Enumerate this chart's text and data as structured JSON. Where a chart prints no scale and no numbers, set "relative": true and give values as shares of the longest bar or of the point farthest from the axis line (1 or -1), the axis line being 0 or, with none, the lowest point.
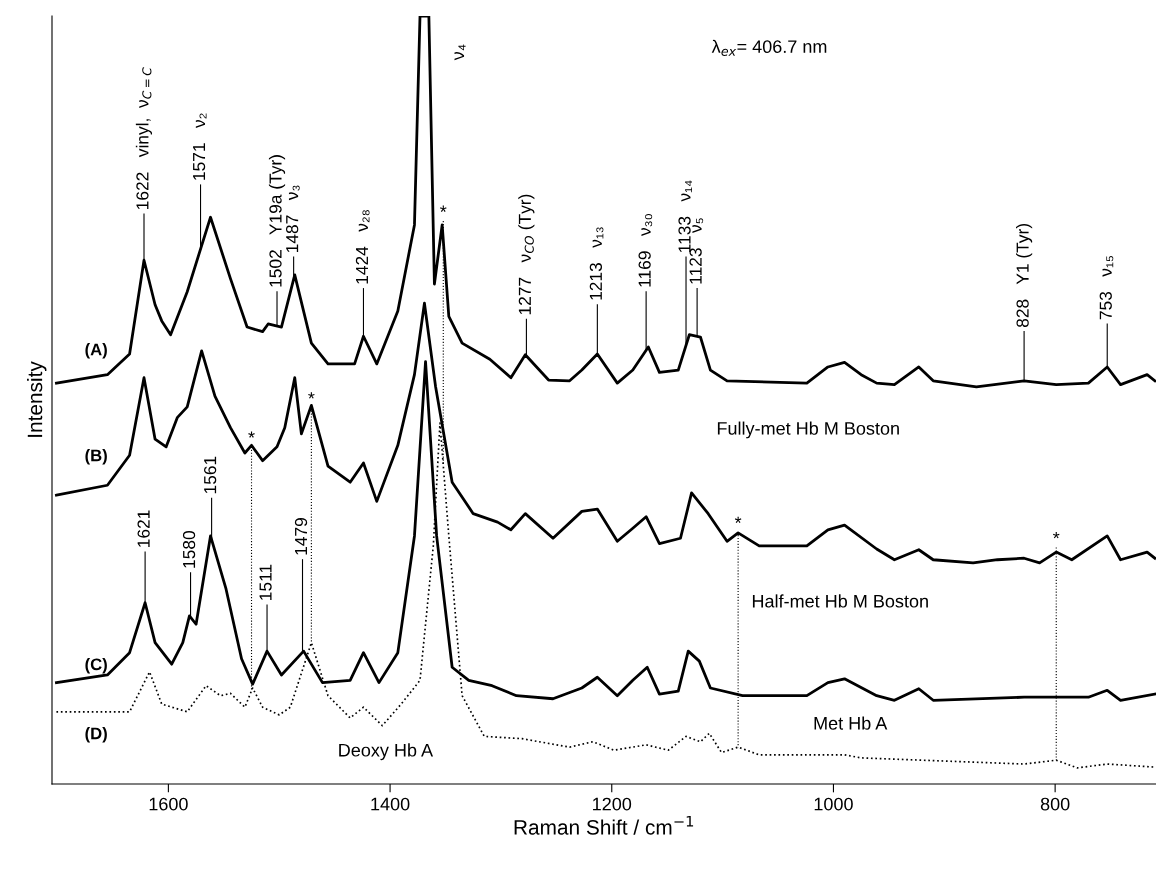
{
  "chart_data": {
    "type": "line",
    "relative": true,
    "xlabel": "Raman Shift / cm$^{−1}$",
    "ylabel": "Intensity",
    "xlim": [
      1705,
      709
    ],
    "xticks": [
      1600,
      1400,
      1200,
      1000,
      800
    ],
    "tick_labels": "x",
    "series": [
      {
        "name": "(A)",
        "color": "#000000",
        "line_style": "solid",
        "x": [
          1701,
          1655,
          1635,
          1622,
          1612,
          1606,
          1598,
          1583,
          1562,
          1544,
          1529,
          1515,
          1510,
          1498,
          1486,
          1471,
          1456,
          1432,
          1424,
          1412,
          1393,
          1378,
          1373,
          1368,
          1365,
          1360,
          1353,
          1347,
          1335,
          1310,
          1291,
          1278,
          1257,
          1238,
          1227,
          1213,
          1195,
          1181,
          1167,
          1157,
          1140,
          1130,
          1120,
          1111,
          1096,
          1024,
          1005,
          990,
          975,
          961,
          945,
          923,
          910,
          871,
          828,
          799,
          770,
          753,
          741,
          717,
          710
        ],
        "values": [
          0.522,
          0.533,
          0.56,
          0.682,
          0.624,
          0.603,
          0.585,
          0.641,
          0.738,
          0.658,
          0.595,
          0.589,
          0.599,
          0.595,
          0.663,
          0.574,
          0.547,
          0.547,
          0.583,
          0.547,
          0.616,
          0.728,
          1.0,
          1.0,
          1.0,
          0.651,
          0.728,
          0.609,
          0.574,
          0.553,
          0.529,
          0.559,
          0.526,
          0.525,
          0.539,
          0.56,
          0.522,
          0.539,
          0.569,
          0.536,
          0.539,
          0.585,
          0.582,
          0.539,
          0.525,
          0.522,
          0.543,
          0.549,
          0.533,
          0.522,
          0.52,
          0.543,
          0.525,
          0.517,
          0.525,
          0.52,
          0.522,
          0.543,
          0.52,
          0.533,
          0.525
        ]
      },
      {
        "name": "(B)",
        "color": "#000000",
        "line_style": "solid",
        "x": [
          1701,
          1655,
          1635,
          1622,
          1612,
          1602,
          1592,
          1583,
          1570,
          1558,
          1544,
          1531,
          1525,
          1515,
          1502,
          1495,
          1486,
          1480,
          1471,
          1456,
          1436,
          1424,
          1412,
          1393,
          1378,
          1369,
          1359,
          1344,
          1325,
          1303,
          1291,
          1278,
          1253,
          1227,
          1213,
          1195,
          1181,
          1169,
          1157,
          1138,
          1128,
          1113,
          1096,
          1086,
          1067,
          1024,
          1005,
          990,
          961,
          945,
          923,
          910,
          874,
          852,
          828,
          814,
          799,
          785,
          753,
          741,
          717,
          710
        ],
        "values": [
          0.376,
          0.389,
          0.428,
          0.529,
          0.449,
          0.439,
          0.477,
          0.491,
          0.564,
          0.505,
          0.464,
          0.431,
          0.441,
          0.421,
          0.439,
          0.464,
          0.529,
          0.456,
          0.493,
          0.414,
          0.393,
          0.418,
          0.368,
          0.441,
          0.533,
          0.626,
          0.518,
          0.393,
          0.352,
          0.341,
          0.331,
          0.352,
          0.32,
          0.355,
          0.358,
          0.316,
          0.333,
          0.348,
          0.313,
          0.32,
          0.379,
          0.352,
          0.316,
          0.327,
          0.31,
          0.31,
          0.331,
          0.337,
          0.306,
          0.292,
          0.305,
          0.292,
          0.288,
          0.292,
          0.294,
          0.288,
          0.302,
          0.292,
          0.323,
          0.292,
          0.302,
          0.294
        ]
      },
      {
        "name": "(C)",
        "color": "#000000",
        "line_style": "solid",
        "x": [
          1701,
          1655,
          1635,
          1621,
          1612,
          1597,
          1587,
          1581,
          1575,
          1562,
          1548,
          1534,
          1524,
          1511,
          1498,
          1478,
          1461,
          1436,
          1424,
          1410,
          1393,
          1378,
          1368,
          1358,
          1344,
          1329,
          1308,
          1286,
          1253,
          1227,
          1213,
          1195,
          1181,
          1168,
          1157,
          1140,
          1131,
          1121,
          1111,
          1082,
          1024,
          1005,
          990,
          961,
          945,
          923,
          910,
          828,
          770,
          753,
          741,
          710
        ],
        "values": [
          0.132,
          0.142,
          0.171,
          0.236,
          0.184,
          0.156,
          0.184,
          0.219,
          0.208,
          0.323,
          0.254,
          0.163,
          0.13,
          0.173,
          0.142,
          0.173,
          0.132,
          0.135,
          0.171,
          0.132,
          0.171,
          0.323,
          0.55,
          0.323,
          0.152,
          0.135,
          0.128,
          0.115,
          0.111,
          0.125,
          0.139,
          0.115,
          0.135,
          0.152,
          0.117,
          0.121,
          0.173,
          0.16,
          0.125,
          0.115,
          0.115,
          0.132,
          0.137,
          0.115,
          0.109,
          0.124,
          0.109,
          0.113,
          0.113,
          0.122,
          0.109,
          0.117
        ]
      },
      {
        "name": "(D)",
        "color": "#000000",
        "line_style": "dotted",
        "x": [
          1701,
          1635,
          1617,
          1606,
          1583,
          1566,
          1553,
          1544,
          1531,
          1524,
          1515,
          1500,
          1490,
          1471,
          1456,
          1436,
          1424,
          1407,
          1390,
          1373,
          1361,
          1355,
          1347,
          1335,
          1315,
          1281,
          1238,
          1217,
          1198,
          1169,
          1149,
          1133,
          1120,
          1112,
          1101,
          1086,
          1067,
          990,
          975,
          828,
          799,
          780,
          753,
          710
        ],
        "values": [
          0.094,
          0.094,
          0.146,
          0.104,
          0.094,
          0.128,
          0.115,
          0.118,
          0.1,
          0.125,
          0.1,
          0.09,
          0.1,
          0.184,
          0.115,
          0.086,
          0.1,
          0.076,
          0.104,
          0.135,
          0.31,
          0.47,
          0.323,
          0.115,
          0.062,
          0.059,
          0.048,
          0.055,
          0.044,
          0.051,
          0.044,
          0.062,
          0.055,
          0.066,
          0.041,
          0.048,
          0.038,
          0.038,
          0.034,
          0.026,
          0.031,
          0.021,
          0.026,
          0.022
        ]
      }
    ],
    "annotations": [
      "λ$_{ex}$= 406.7 nm",
      "ν₄",
      "Fully-met Hb M Boston",
      "Half-met Hb M Boston",
      "Met Hb A",
      "Deoxy Hb A",
      "1622   vinyl,  ν$_{C=C}$",
      "1571   ν₂",
      "1502   Y19a (Tyr)",
      "1487   ν₃",
      "1424   ν₂₈",
      "1277   ν$_{CO}$ (Tyr)",
      "1213   ν₁₃",
      "1169   ν₃₀",
      "1133   ν₁₄",
      "1123   ν₅",
      "828   Y1 (Tyr)",
      "753   ν₁₅",
      "1621",
      "1580",
      "1561",
      "1511",
      "1479",
      "*",
      "*",
      "*",
      "*",
      "*"
    ]
  }
}
